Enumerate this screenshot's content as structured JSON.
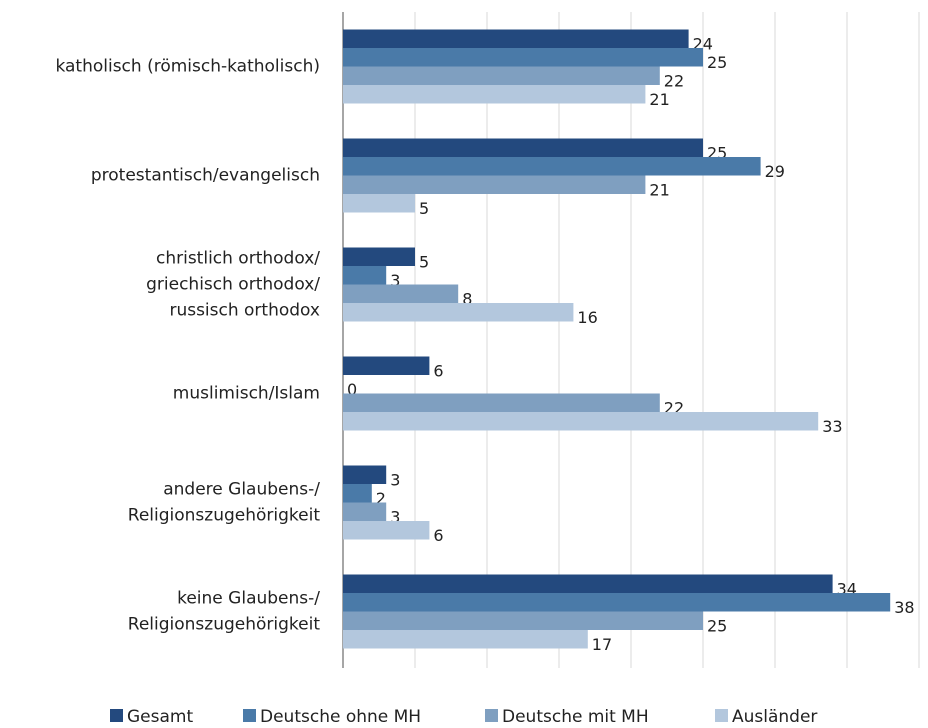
{
  "chart_data": {
    "type": "hbar",
    "categories": [
      [
        "katholisch (römisch-katholisch)"
      ],
      [
        "protestantisch/evangelisch"
      ],
      [
        "christlich orthodox/",
        "griechisch orthodox/",
        "russisch orthodox"
      ],
      [
        "muslimisch/Islam"
      ],
      [
        "andere Glaubens-/",
        "Religionszugehörigkeit"
      ],
      [
        "keine Glaubens-/",
        "Religionszugehörigkeit"
      ]
    ],
    "series": [
      {
        "name": "Gesamt",
        "color": "#23497e",
        "values": [
          24,
          25,
          5,
          6,
          3,
          34
        ]
      },
      {
        "name": "Deutsche ohne MH",
        "color": "#4a7aa8",
        "values": [
          25,
          29,
          3,
          0,
          2,
          38
        ]
      },
      {
        "name": "Deutsche mit MH",
        "color": "#7f9fc0",
        "values": [
          22,
          21,
          8,
          22,
          3,
          25
        ]
      },
      {
        "name": "Ausländer",
        "color": "#b3c7dd",
        "values": [
          21,
          5,
          16,
          33,
          6,
          17
        ]
      }
    ],
    "xlim": [
      0,
      40
    ],
    "xticks": [
      0,
      5,
      10,
      15,
      20,
      25,
      30,
      35,
      40
    ],
    "show_tick_labels": false,
    "grid": true,
    "legend": "bottom"
  }
}
